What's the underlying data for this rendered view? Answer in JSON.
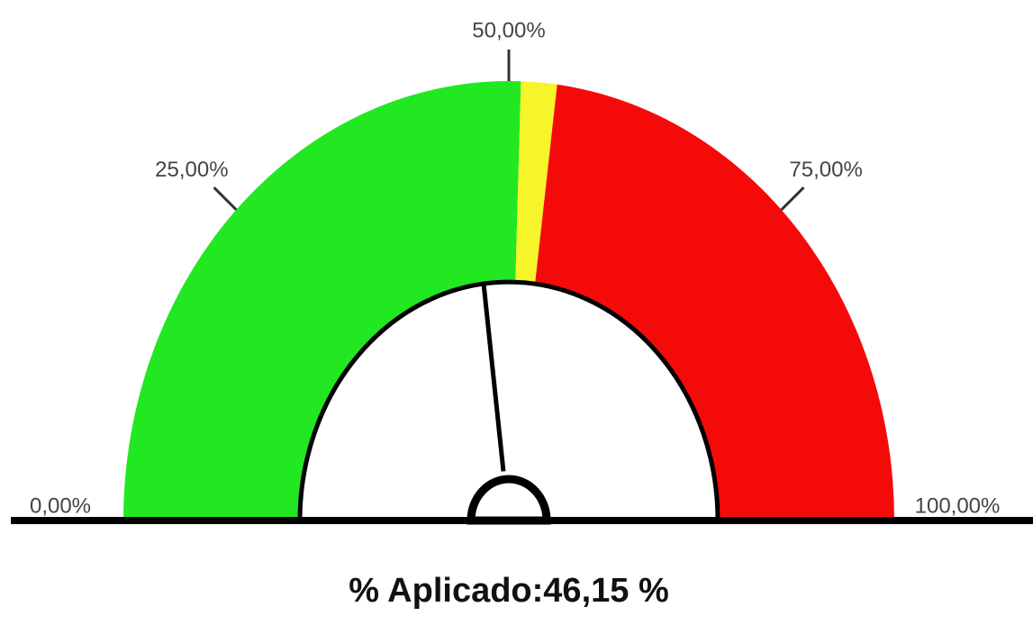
{
  "chart_data": {
    "type": "gauge",
    "ylim": [
      0,
      100
    ],
    "yticks": [
      {
        "value": 0,
        "label": "0,00%"
      },
      {
        "value": 25,
        "label": "25,00%"
      },
      {
        "value": 50,
        "label": "50,00%"
      },
      {
        "value": 75,
        "label": "75,00%"
      },
      {
        "value": 100,
        "label": "100,00%"
      }
    ],
    "bands": [
      {
        "from": 0,
        "to": 51,
        "color": "#22e822"
      },
      {
        "from": 51,
        "to": 54,
        "color": "#f5f52a"
      },
      {
        "from": 54,
        "to": 100,
        "color": "#f50a0a"
      }
    ],
    "label": "% Aplicado:",
    "values": [
      46.15
    ],
    "value_labels": [
      "46,15 %"
    ]
  }
}
